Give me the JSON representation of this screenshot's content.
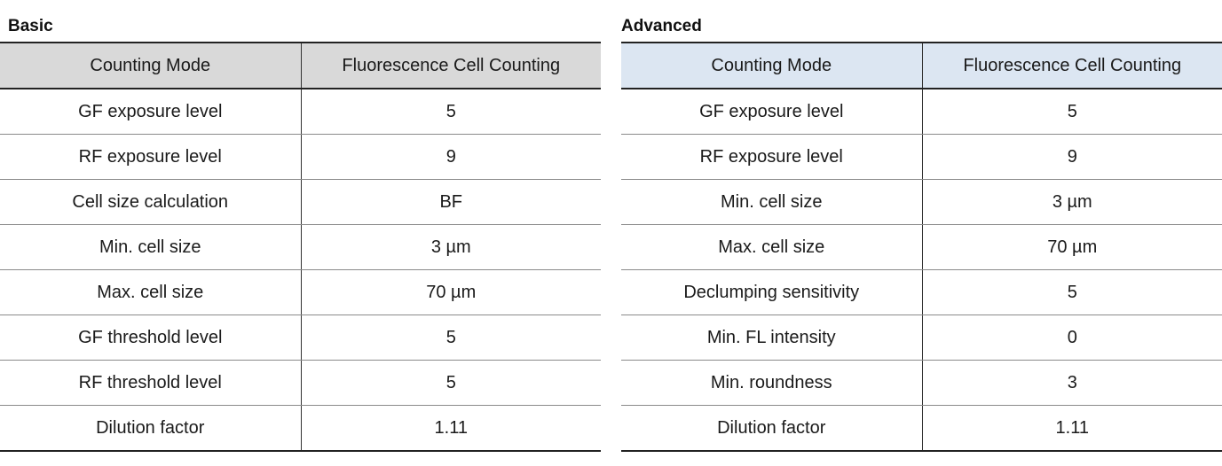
{
  "basic": {
    "title": "Basic",
    "header": [
      "Counting Mode",
      "Fluorescence Cell Counting"
    ],
    "rows": [
      {
        "label": "GF exposure level",
        "value": "5"
      },
      {
        "label": "RF exposure level",
        "value": "9"
      },
      {
        "label": "Cell size calculation",
        "value": "BF"
      },
      {
        "label": "Min. cell size",
        "value": "3 µm"
      },
      {
        "label": "Max. cell size",
        "value": "70 µm"
      },
      {
        "label": "GF threshold level",
        "value": "5"
      },
      {
        "label": "RF threshold level",
        "value": "5"
      },
      {
        "label": "Dilution factor",
        "value": "1.11"
      }
    ]
  },
  "advanced": {
    "title": "Advanced",
    "header": [
      "Counting Mode",
      "Fluorescence Cell Counting"
    ],
    "rows": [
      {
        "label": "GF exposure level",
        "value": "5"
      },
      {
        "label": "RF exposure level",
        "value": "9"
      },
      {
        "label": "Min. cell size",
        "value": "3 µm"
      },
      {
        "label": "Max. cell size",
        "value": "70 µm"
      },
      {
        "label": "Declumping sensitivity",
        "value": "5"
      },
      {
        "label": "Min. FL intensity",
        "value": "0"
      },
      {
        "label": "Min. roundness",
        "value": "3"
      },
      {
        "label": "Dilution factor",
        "value": "1.11"
      }
    ]
  },
  "colors": {
    "basic_header_bg": "#d9d9d9",
    "advanced_header_bg": "#dce6f2",
    "rule": "#222222"
  }
}
